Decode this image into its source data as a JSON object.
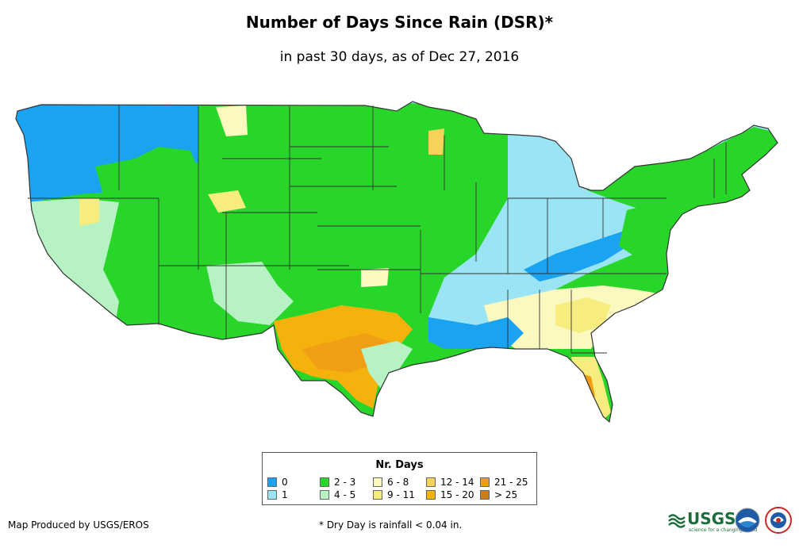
{
  "title": "Number of Days Since Rain (DSR)*",
  "subtitle": "in past 30 days, as of Dec 27, 2016",
  "legend": {
    "title": "Nr. Days",
    "items": [
      {
        "label": "0",
        "color": "#1aa3f0"
      },
      {
        "label": "1",
        "color": "#9ae4f6"
      },
      {
        "label": "2 - 3",
        "color": "#28d62a"
      },
      {
        "label": "4 - 5",
        "color": "#b7f2c5"
      },
      {
        "label": "6 - 8",
        "color": "#fbf8c0"
      },
      {
        "label": "9 - 11",
        "color": "#f7ec7e"
      },
      {
        "label": "12 - 14",
        "color": "#f5d35a"
      },
      {
        "label": "15 - 20",
        "color": "#f5b20d"
      },
      {
        "label": "21 - 25",
        "color": "#f09f14"
      },
      {
        "label": "> 25",
        "color": "#cf7d18"
      }
    ]
  },
  "footer": {
    "credit": "Map Produced by USGS/EROS",
    "note": "* Dry Day is rainfall < 0.04 in."
  },
  "logos": {
    "usgs_text": "USGS",
    "usgs_tagline": "science for a changing world",
    "noaa_text": "NOAA",
    "nws_text": "NWS"
  }
}
